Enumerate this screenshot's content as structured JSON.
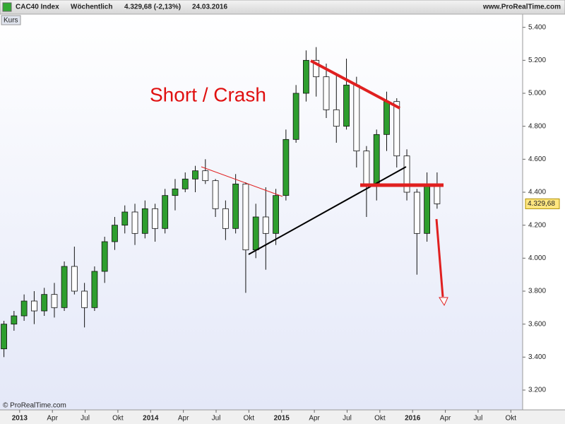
{
  "header": {
    "instrument": "CAC40 Index",
    "period": "Wöchentlich",
    "quote": "4.329,68 (-2,13%)",
    "date": "24.03.2016",
    "site": "www.ProRealTime.com"
  },
  "chart_data": {
    "type": "candlestick",
    "series_label": "Kurs",
    "annotation": "Short / Crash",
    "copyright": "© ProRealTime.com",
    "x": [
      2012.88,
      2012.957,
      2013.034,
      2013.111,
      2013.188,
      2013.265,
      2013.341,
      2013.418,
      2013.495,
      2013.572,
      2013.649,
      2013.726,
      2013.803,
      2013.88,
      2013.957,
      2014.034,
      2014.11,
      2014.187,
      2014.264,
      2014.341,
      2014.418,
      2014.495,
      2014.572,
      2014.649,
      2014.726,
      2014.803,
      2014.879,
      2014.956,
      2015.033,
      2015.11,
      2015.187,
      2015.264,
      2015.341,
      2015.418,
      2015.495,
      2015.572,
      2015.648,
      2015.725,
      2015.802,
      2015.879,
      2015.956,
      2016.033,
      2016.11,
      2016.187
    ],
    "open": [
      3450,
      3600,
      3650,
      3740,
      3680,
      3780,
      3700,
      3950,
      3800,
      3700,
      3920,
      4100,
      4200,
      4280,
      4150,
      4300,
      4180,
      4380,
      4420,
      4480,
      4530,
      4470,
      4300,
      4180,
      4450,
      4050,
      4250,
      4150,
      4380,
      4720,
      5000,
      5200,
      5100,
      4900,
      4800,
      5050,
      4650,
      4450,
      4750,
      4950,
      4620,
      4400,
      4150,
      4450
    ],
    "high": [
      3620,
      3680,
      3780,
      3800,
      3820,
      3850,
      3980,
      4070,
      3850,
      3950,
      4130,
      4250,
      4320,
      4330,
      4350,
      4330,
      4420,
      4480,
      4520,
      4560,
      4600,
      4480,
      4350,
      4510,
      4460,
      4330,
      4430,
      4420,
      4780,
      5050,
      5260,
      5280,
      5180,
      5120,
      5210,
      5100,
      4680,
      4780,
      5010,
      4970,
      4660,
      4420,
      4520,
      4520
    ],
    "low": [
      3400,
      3560,
      3620,
      3600,
      3650,
      3640,
      3680,
      3780,
      3580,
      3680,
      3850,
      4050,
      4150,
      4080,
      4120,
      4100,
      4150,
      4290,
      4400,
      4400,
      4450,
      4250,
      4110,
      4150,
      3790,
      4000,
      3930,
      4080,
      4350,
      4700,
      4950,
      4980,
      4850,
      4700,
      4780,
      4550,
      4250,
      4350,
      4650,
      4550,
      4350,
      3900,
      4100,
      4300
    ],
    "close": [
      3600,
      3650,
      3740,
      3680,
      3780,
      3700,
      3950,
      3800,
      3700,
      3920,
      4100,
      4200,
      4280,
      4150,
      4300,
      4180,
      4380,
      4420,
      4480,
      4530,
      4470,
      4300,
      4180,
      4450,
      4050,
      4250,
      4150,
      4380,
      4720,
      5000,
      5200,
      5100,
      4900,
      4800,
      5050,
      4650,
      4450,
      4750,
      4950,
      4620,
      4400,
      4150,
      4450,
      4329.68
    ],
    "up_color": "#2e9e2e",
    "down_color": "#ffffff",
    "last_label": "4.329,68",
    "xlim": [
      2012.85,
      2016.84
    ],
    "xticks": [
      2013,
      {
        "value": 2013.25,
        "label": "Apr"
      },
      {
        "value": 2013.5,
        "label": "Jul"
      },
      {
        "value": 2013.75,
        "label": "Okt"
      },
      2014,
      {
        "value": 2014.25,
        "label": "Apr"
      },
      {
        "value": 2014.5,
        "label": "Jul"
      },
      {
        "value": 2014.75,
        "label": "Okt"
      },
      2015,
      {
        "value": 2015.25,
        "label": "Apr"
      },
      {
        "value": 2015.5,
        "label": "Jul"
      },
      {
        "value": 2015.75,
        "label": "Okt"
      },
      2016,
      {
        "value": 2016.25,
        "label": "Apr"
      },
      {
        "value": 2016.5,
        "label": "Jul"
      },
      {
        "value": 2016.75,
        "label": "Okt"
      }
    ],
    "ylim": [
      3080,
      5480
    ],
    "yticks": [
      {
        "value": 3200,
        "label": "3.200"
      },
      {
        "value": 3400,
        "label": "3.400"
      },
      {
        "value": 3600,
        "label": "3.600"
      },
      {
        "value": 3800,
        "label": "3.800"
      },
      {
        "value": 4000,
        "label": "4.000"
      },
      {
        "value": 4200,
        "label": "4.200"
      },
      {
        "value": 4400,
        "label": "4.400"
      },
      {
        "value": 4600,
        "label": "4.600"
      },
      {
        "value": 4800,
        "label": "4.800"
      },
      {
        "value": 5000,
        "label": "5.000"
      },
      {
        "value": 5200,
        "label": "5.200"
      },
      {
        "value": 5400,
        "label": "5.400"
      }
    ]
  }
}
